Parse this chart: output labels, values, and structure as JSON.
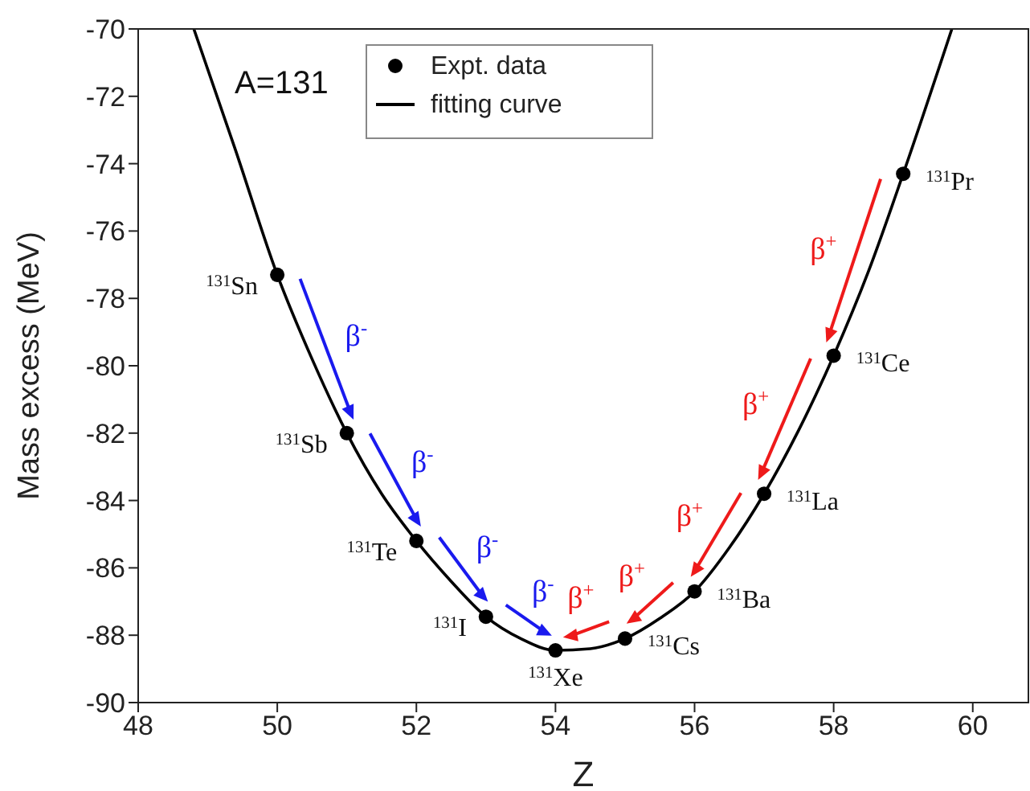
{
  "chart_data": {
    "type": "scatter",
    "xlabel": "Z",
    "ylabel": "Mass excess (MeV)",
    "xlim": [
      48,
      60.8
    ],
    "xticks": [
      48,
      50,
      52,
      54,
      56,
      58,
      60
    ],
    "ylim": [
      -90,
      -70
    ],
    "yticks": [
      -90,
      -88,
      -86,
      -84,
      -82,
      -80,
      -78,
      -76,
      -74,
      -72,
      -70
    ],
    "legend": "top",
    "series": [
      {
        "name": "Expt. data",
        "marker": "circle",
        "color": "#000000",
        "x": [
          50,
          51,
          52,
          53,
          54,
          55,
          56,
          57,
          58,
          59
        ],
        "values": [
          -77.3,
          -82.0,
          -85.2,
          -87.45,
          -88.45,
          -88.1,
          -86.7,
          -83.8,
          -79.7,
          -74.3
        ]
      },
      {
        "name": "fitting curve",
        "type": "line",
        "color": "#000000",
        "line_style": "solid",
        "x": [
          48.8,
          49.4,
          50,
          50.5,
          51,
          51.5,
          52,
          52.5,
          53,
          53.5,
          54,
          54.5,
          55,
          55.5,
          56,
          56.5,
          57,
          57.5,
          58,
          58.5,
          59,
          59.7
        ],
        "values": [
          -70,
          -73.6,
          -77.3,
          -79.8,
          -82.0,
          -83.8,
          -85.2,
          -86.4,
          -87.45,
          -88.1,
          -88.45,
          -88.4,
          -88.1,
          -87.5,
          -86.7,
          -85.4,
          -83.8,
          -81.9,
          -79.7,
          -77.2,
          -74.3,
          -70
        ]
      }
    ],
    "annotations": [
      "A=131",
      {
        "text": "$^{131}$Sn",
        "x": 50,
        "y": -77.3
      },
      {
        "text": "$^{131}$Sb",
        "x": 51,
        "y": -82.0
      },
      {
        "text": "$^{131}$Te",
        "x": 52,
        "y": -85.2
      },
      {
        "text": "$^{131}$I",
        "x": 53,
        "y": -87.45
      },
      {
        "text": "$^{131}$Xe",
        "x": 54,
        "y": -88.45
      },
      {
        "text": "$^{131}$Cs",
        "x": 55,
        "y": -88.1
      },
      {
        "text": "$^{131}$Ba",
        "x": 56,
        "y": -86.7
      },
      {
        "text": "$^{131}$La",
        "x": 57,
        "y": -83.8
      },
      {
        "text": "$^{131}$Ce",
        "x": 58,
        "y": -79.7
      },
      {
        "text": "$^{131}$Pr",
        "x": 59,
        "y": -74.3
      },
      "β$^{-}$",
      "β$^{-}$",
      "β$^{-}$",
      "β$^{-}$",
      "β$^{+}$",
      "β$^{+}$",
      "β$^{+}$",
      "β$^{+}$",
      "β$^{+}$"
    ]
  }
}
